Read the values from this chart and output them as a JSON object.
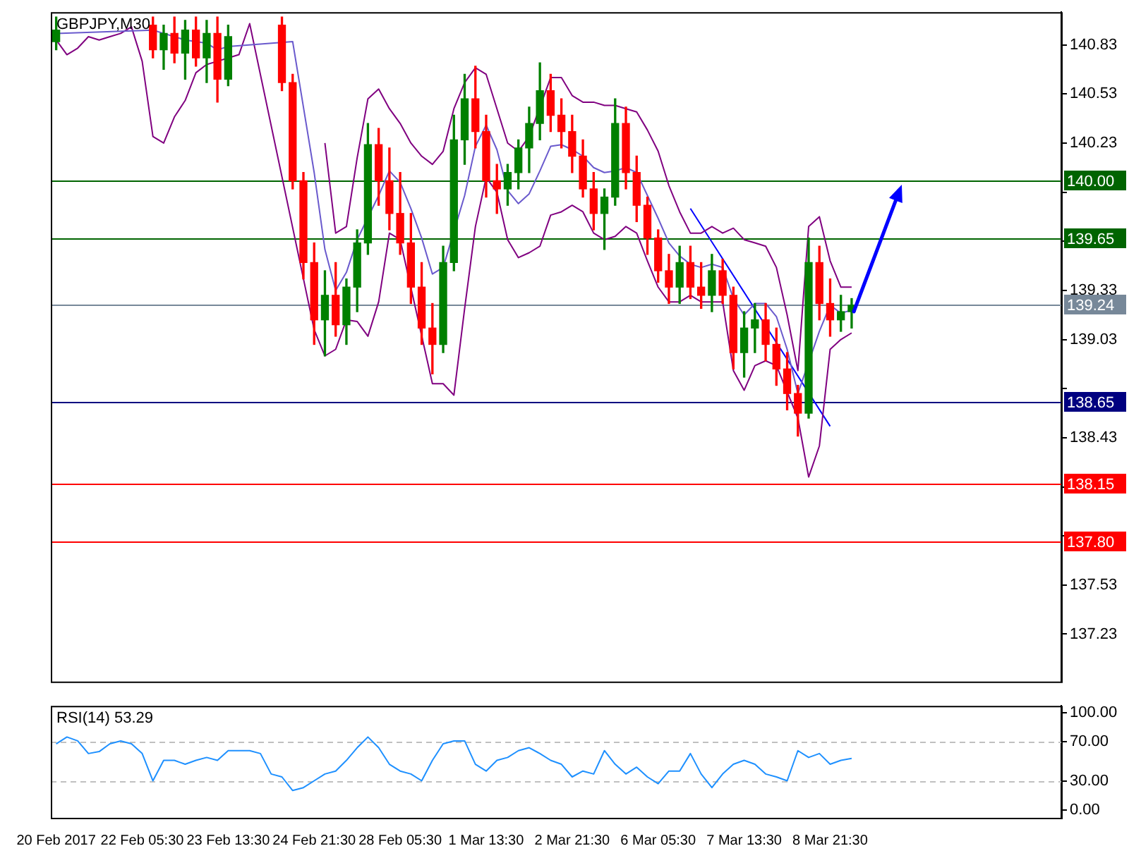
{
  "chart_data": [
    {
      "type": "candlestick",
      "title": "GBPJPY,M30",
      "tick_labels": "y",
      "categories": [
        null,
        null,
        null,
        null,
        null,
        null,
        null,
        null,
        null,
        null,
        null,
        null,
        null,
        null,
        null,
        null,
        null,
        null,
        null,
        null,
        null,
        null,
        null,
        null,
        null,
        null,
        null,
        null,
        null,
        null,
        null,
        null,
        null,
        null,
        null,
        null,
        null,
        null,
        null,
        null,
        null,
        null,
        null,
        null,
        null,
        null,
        null,
        null,
        null,
        null,
        null,
        null,
        null,
        null,
        null,
        null,
        null,
        null,
        null,
        null,
        null,
        null,
        null,
        null,
        null,
        null,
        null,
        null,
        null,
        null,
        null,
        null,
        null,
        null,
        null,
        null,
        null,
        null,
        null,
        null,
        null,
        null,
        null,
        null,
        null,
        null,
        null,
        null,
        null,
        null,
        null,
        null,
        null,
        null
      ],
      "ohlc": [
        [
          140.85,
          141.0,
          140.8,
          140.92
        ],
        null,
        null,
        null,
        null,
        null,
        null,
        null,
        null,
        [
          140.95,
          141.0,
          140.75,
          140.8
        ],
        [
          140.8,
          140.95,
          140.68,
          140.9
        ],
        [
          140.9,
          141.0,
          140.72,
          140.78
        ],
        [
          140.78,
          140.98,
          140.62,
          140.92
        ],
        [
          140.92,
          141.0,
          140.7,
          140.75
        ],
        [
          140.75,
          140.98,
          140.6,
          140.9
        ],
        [
          140.9,
          141.0,
          140.48,
          140.62
        ],
        [
          140.62,
          140.95,
          140.58,
          140.88
        ],
        null,
        null,
        null,
        null,
        [
          140.95,
          141.0,
          140.55,
          140.6
        ],
        [
          140.6,
          140.65,
          139.95,
          140.0
        ],
        [
          140.0,
          140.05,
          139.4,
          139.5
        ],
        [
          139.5,
          139.62,
          139.0,
          139.15
        ],
        [
          139.15,
          139.45,
          138.93,
          139.3
        ],
        [
          139.3,
          139.5,
          139.05,
          139.12
        ],
        [
          139.12,
          139.4,
          139.0,
          139.35
        ],
        [
          139.35,
          139.7,
          139.2,
          139.62
        ],
        [
          139.62,
          140.35,
          139.55,
          140.22
        ],
        [
          140.22,
          140.32,
          139.85,
          140.0
        ],
        [
          140.0,
          140.2,
          139.7,
          139.8
        ],
        [
          139.8,
          140.05,
          139.55,
          139.62
        ],
        [
          139.62,
          139.8,
          139.25,
          139.35
        ],
        [
          139.35,
          139.5,
          139.0,
          139.1
        ],
        [
          139.1,
          139.25,
          138.82,
          139.0
        ],
        [
          139.0,
          139.6,
          138.95,
          139.5
        ],
        [
          139.5,
          140.4,
          139.45,
          140.25
        ],
        [
          140.25,
          140.65,
          140.1,
          140.5
        ],
        [
          140.5,
          140.7,
          140.2,
          140.3
        ],
        [
          140.3,
          140.4,
          139.9,
          140.0
        ],
        [
          140.0,
          140.1,
          139.8,
          139.95
        ],
        [
          139.95,
          140.1,
          139.85,
          140.05
        ],
        [
          140.05,
          140.25,
          139.95,
          140.2
        ],
        [
          140.2,
          140.45,
          140.05,
          140.35
        ],
        [
          140.35,
          140.72,
          140.25,
          140.55
        ],
        [
          140.55,
          140.65,
          140.3,
          140.4
        ],
        [
          140.4,
          140.5,
          140.2,
          140.3
        ],
        [
          140.3,
          140.4,
          140.05,
          140.15
        ],
        [
          140.15,
          140.25,
          139.9,
          139.95
        ],
        [
          139.95,
          140.05,
          139.7,
          139.8
        ],
        [
          139.8,
          139.95,
          139.58,
          139.9
        ],
        [
          139.9,
          140.5,
          139.85,
          140.35
        ],
        [
          140.35,
          140.45,
          139.95,
          140.05
        ],
        [
          140.05,
          140.15,
          139.75,
          139.85
        ],
        [
          139.85,
          139.9,
          139.55,
          139.65
        ],
        [
          139.65,
          139.7,
          139.38,
          139.45
        ],
        [
          139.45,
          139.55,
          139.25,
          139.35
        ],
        [
          139.35,
          139.6,
          139.25,
          139.5
        ],
        [
          139.5,
          139.6,
          139.28,
          139.35
        ],
        [
          139.35,
          139.5,
          139.22,
          139.3
        ],
        [
          139.3,
          139.55,
          139.2,
          139.45
        ],
        [
          139.45,
          139.52,
          139.25,
          139.3
        ],
        [
          139.3,
          139.35,
          138.85,
          138.95
        ],
        [
          138.95,
          139.2,
          138.8,
          139.1
        ],
        [
          139.1,
          139.25,
          138.95,
          139.15
        ],
        [
          139.15,
          139.25,
          138.9,
          139.0
        ],
        [
          139.0,
          139.1,
          138.75,
          138.85
        ],
        [
          138.85,
          138.95,
          138.6,
          138.7
        ],
        [
          138.7,
          138.75,
          138.44,
          138.58
        ],
        [
          138.58,
          139.65,
          138.55,
          139.5
        ],
        [
          139.5,
          139.6,
          139.15,
          139.25
        ],
        [
          139.25,
          139.4,
          139.05,
          139.15
        ],
        [
          139.15,
          139.3,
          139.08,
          139.2
        ],
        [
          139.2,
          139.28,
          139.1,
          139.24
        ],
        null,
        null,
        null,
        null,
        null,
        null,
        null,
        null,
        null,
        null,
        null,
        null,
        null,
        null,
        null,
        null,
        null,
        null,
        null
      ],
      "colors": [
        "#008000",
        null,
        null,
        null,
        null,
        null,
        null,
        null,
        null,
        "#ff0000",
        "#008000",
        "#ff0000",
        "#008000",
        "#ff0000",
        "#008000",
        "#ff0000",
        "#008000",
        null,
        null,
        null,
        null,
        "#ff0000",
        "#ff0000",
        "#ff0000",
        "#ff0000",
        "#008000",
        "#ff0000",
        "#008000",
        "#008000",
        "#008000",
        "#ff0000",
        "#ff0000",
        "#ff0000",
        "#ff0000",
        "#ff0000",
        "#ff0000",
        "#008000",
        "#008000",
        "#008000",
        "#ff0000",
        "#ff0000",
        "#ff0000",
        "#008000",
        "#008000",
        "#008000",
        "#008000",
        "#ff0000",
        "#ff0000",
        "#ff0000",
        "#ff0000",
        "#ff0000",
        "#008000",
        "#008000",
        "#ff0000",
        "#ff0000",
        "#ff0000",
        "#ff0000",
        "#ff0000",
        "#008000",
        "#ff0000",
        "#ff0000",
        "#008000",
        "#ff0000",
        "#ff0000",
        "#008000",
        "#008000",
        "#ff0000",
        "#ff0000",
        "#ff0000",
        "#ff0000",
        "#008000",
        "#ff0000",
        "#ff0000",
        "#008000",
        "#008000",
        null,
        null,
        null,
        null,
        null,
        null,
        null,
        null,
        null,
        null,
        null,
        null,
        null,
        null,
        null,
        null,
        null,
        null,
        null
      ],
      "series": [
        {
          "type": "line",
          "color": "#800080",
          "values": [
            null,
            null,
            null,
            null,
            null,
            null,
            null,
            null,
            null,
            null,
            null,
            null,
            null,
            null,
            null,
            null,
            null,
            null,
            null,
            null,
            null,
            null,
            null,
            null,
            null,
            140.23,
            139.68,
            139.72,
            140.14,
            140.5,
            140.56,
            140.44,
            140.35,
            140.23,
            140.15,
            140.1,
            140.18,
            140.44,
            140.6,
            140.69,
            140.65,
            140.44,
            140.23,
            140.18,
            140.27,
            null,
            140.63,
            140.63,
            140.52,
            140.48,
            140.48,
            140.46,
            140.46,
            140.44,
            140.42,
            140.31,
            140.18,
            139.97,
            139.81,
            139.68,
            139.68,
            139.72,
            139.68,
            139.71,
            139.64,
            139.62,
            139.6,
            139.47,
            139.18,
            138.84,
            139.72,
            139.78,
            139.51,
            139.35,
            139.35,
            null,
            null,
            null,
            null,
            null,
            null,
            null,
            null,
            null,
            null,
            null,
            null,
            null,
            null,
            null,
            null,
            null,
            null,
            null
          ]
        },
        {
          "type": "line",
          "color": "#6a5acd",
          "values": [
            140.9,
            null,
            null,
            null,
            null,
            null,
            null,
            null,
            null,
            140.92,
            140.9,
            140.88,
            140.86,
            140.85,
            140.84,
            140.8,
            140.82,
            null,
            null,
            null,
            null,
            null,
            140.85,
            140.45,
            140.05,
            139.58,
            139.33,
            139.44,
            139.64,
            null,
            139.91,
            140.06,
            139.99,
            139.83,
            139.65,
            139.43,
            139.47,
            null,
            139.91,
            140.21,
            140.34,
            140.19,
            139.94,
            139.86,
            139.92,
            140.06,
            140.21,
            140.22,
            140.19,
            140.15,
            140.08,
            140.05,
            140.06,
            140.08,
            140.05,
            139.91,
            139.77,
            139.62,
            139.54,
            139.49,
            139.47,
            139.49,
            139.47,
            139.28,
            139.18,
            139.25,
            139.25,
            139.17,
            138.97,
            138.7,
            null,
            139.08,
            139.24,
            139.19,
            139.21,
            null,
            null,
            null,
            null,
            null,
            null,
            null,
            null,
            null,
            null,
            null,
            null,
            null,
            null,
            null,
            null,
            null,
            null,
            null
          ]
        },
        {
          "type": "line",
          "color": "#800080",
          "values": [
            140.86,
            140.77,
            140.81,
            140.88,
            140.86,
            140.88,
            140.9,
            140.94,
            140.73,
            140.27,
            140.23,
            140.39,
            140.49,
            140.66,
            140.71,
            140.73,
            140.75,
            140.77,
            140.96,
            null,
            null,
            null,
            null,
            null,
            139.09,
            138.93,
            138.97,
            139.15,
            139.14,
            139.05,
            139.26,
            139.68,
            139.64,
            null,
            null,
            138.76,
            138.76,
            138.69,
            139.22,
            139.72,
            140.02,
            139.93,
            139.64,
            139.53,
            139.56,
            139.6,
            139.79,
            139.81,
            139.85,
            139.81,
            139.68,
            139.64,
            139.66,
            139.72,
            139.68,
            139.51,
            139.35,
            139.26,
            139.26,
            139.3,
            139.26,
            139.26,
            139.26,
            138.84,
            138.72,
            138.87,
            138.9,
            138.87,
            null,
            138.55,
            138.19,
            138.38,
            138.97,
            139.03,
            139.07,
            null,
            null,
            null,
            null,
            null,
            null,
            null,
            null,
            null,
            null,
            null,
            null,
            null,
            null,
            null,
            null,
            null,
            null,
            null
          ]
        },
        {
          "type": "line",
          "color": "#0000ff",
          "values": [
            null,
            null,
            null,
            null,
            null,
            null,
            null,
            null,
            null,
            null,
            null,
            null,
            null,
            null,
            null,
            null,
            null,
            null,
            null,
            null,
            null,
            null,
            null,
            null,
            null,
            null,
            null,
            null,
            null,
            null,
            null,
            null,
            null,
            null,
            null,
            null,
            null,
            null,
            null,
            null,
            null,
            null,
            null,
            null,
            null,
            null,
            null,
            null,
            null,
            null,
            null,
            null,
            null,
            null,
            null,
            null,
            null,
            null,
            null,
            139.83,
            null,
            null,
            null,
            null,
            null,
            null,
            null,
            null,
            null,
            null,
            null,
            null,
            138.5,
            null,
            null,
            null,
            null,
            null,
            null,
            null,
            null,
            null,
            null,
            null,
            null,
            null,
            null,
            null,
            null,
            null,
            null,
            null,
            null,
            null
          ]
        }
      ],
      "ylim": [
        136.94,
        141.03
      ],
      "yticks": [
        137.23,
        137.53,
        {
          "value": 137.83,
          "label": null
        },
        {
          "value": 138.13,
          "label": null
        },
        138.43,
        {
          "value": 138.73,
          "label": null
        },
        139.03,
        139.33,
        {
          "value": 139.63,
          "label": null
        },
        {
          "value": 139.93,
          "label": null
        },
        140.23,
        140.53,
        140.83
      ],
      "ref_lines": [
        {
          "axis": "y",
          "value": 140.0,
          "label": "140.00",
          "color": "#006400"
        },
        {
          "axis": "y",
          "value": 139.65,
          "label": "139.65",
          "color": "#006400"
        },
        {
          "axis": "y",
          "value": 139.24,
          "label": "139.24",
          "color": "#778899"
        },
        {
          "axis": "y",
          "value": 138.65,
          "label": "138.65",
          "color": "#000080"
        },
        {
          "axis": "y",
          "value": 138.15,
          "label": "138.15",
          "color": "#ff0000"
        },
        {
          "axis": "y",
          "value": 137.8,
          "label": "137.80",
          "color": "#ff0000"
        }
      ]
    },
    {
      "type": "line",
      "title": "RSI(14) 53.29",
      "categories": [
        "20 Feb 2017",
        null,
        null,
        null,
        null,
        null,
        null,
        null,
        "22 Feb 05:30",
        null,
        null,
        null,
        null,
        null,
        null,
        null,
        "23 Feb 13:30",
        null,
        null,
        null,
        null,
        null,
        null,
        null,
        "24 Feb 21:30",
        null,
        null,
        null,
        null,
        null,
        null,
        null,
        "28 Feb 05:30",
        null,
        null,
        null,
        null,
        null,
        null,
        null,
        "1 Mar 13:30",
        null,
        null,
        null,
        null,
        null,
        null,
        null,
        "2 Mar 21:30",
        null,
        null,
        null,
        null,
        null,
        null,
        null,
        "6 Mar 05:30",
        null,
        null,
        null,
        null,
        null,
        null,
        null,
        "7 Mar 13:30",
        null,
        null,
        null,
        null,
        null,
        null,
        null,
        "8 Mar 21:30",
        null,
        null,
        null,
        null,
        null,
        null,
        null,
        null,
        null,
        null,
        null,
        null,
        null,
        null,
        null,
        null,
        null,
        null,
        null,
        null,
        null
      ],
      "series": [
        {
          "color": "#1e90ff",
          "values": [
            68,
            75,
            71,
            58,
            60,
            68,
            71,
            68,
            58,
            30,
            51,
            51,
            47,
            51,
            54,
            51,
            61,
            61,
            61,
            58,
            37,
            34,
            20,
            23,
            30,
            37,
            40,
            51,
            64,
            75,
            64,
            47,
            40,
            37,
            30,
            51,
            68,
            71,
            71,
            47,
            40,
            51,
            54,
            61,
            64,
            58,
            51,
            47,
            34,
            40,
            37,
            61,
            47,
            37,
            44,
            34,
            27,
            40,
            40,
            58,
            37,
            23,
            37,
            47,
            51,
            47,
            37,
            34,
            30,
            61,
            54,
            58,
            47,
            51,
            53,
            null,
            null,
            null,
            null,
            null,
            null,
            null,
            null,
            null,
            null,
            null,
            null,
            null,
            null,
            null,
            null,
            null,
            null,
            null
          ]
        }
      ],
      "ylim": [
        -8,
        107
      ],
      "yticks": [
        {
          "value": 0,
          "label": "0.00"
        },
        {
          "value": 30,
          "label": "30.00"
        },
        {
          "value": 70,
          "label": "70.00"
        },
        {
          "value": 100,
          "label": "100.00"
        }
      ],
      "ref_lines": [
        {
          "axis": "y",
          "value": 70,
          "color": "#c0c0c0",
          "line_style": "dashed"
        },
        {
          "axis": "y",
          "value": 30,
          "color": "#c0c0c0",
          "line_style": "dashed"
        }
      ]
    }
  ]
}
